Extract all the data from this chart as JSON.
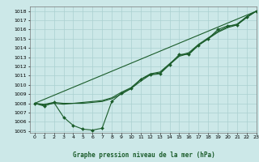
{
  "title": "Graphe pression niveau de la mer (hPa)",
  "bg_color": "#cce8e8",
  "grid_color": "#aad0d0",
  "line_color": "#1a5c2a",
  "xlim": [
    -0.5,
    23
  ],
  "ylim": [
    1004.8,
    1018.5
  ],
  "xticks": [
    0,
    1,
    2,
    3,
    4,
    5,
    6,
    7,
    8,
    9,
    10,
    11,
    12,
    13,
    14,
    15,
    16,
    17,
    18,
    19,
    20,
    21,
    22,
    23
  ],
  "yticks": [
    1005,
    1006,
    1007,
    1008,
    1009,
    1010,
    1011,
    1012,
    1013,
    1014,
    1015,
    1016,
    1017,
    1018
  ],
  "series_dip": {
    "x": [
      0,
      1,
      2,
      3,
      4,
      5,
      6,
      7,
      8,
      9,
      10,
      11,
      12,
      13,
      14,
      15,
      16,
      17,
      18,
      19,
      20,
      21,
      22,
      23
    ],
    "y": [
      1008.0,
      1007.7,
      1008.1,
      1006.5,
      1005.6,
      1005.2,
      1005.1,
      1005.3,
      1008.2,
      1009.1,
      1009.6,
      1010.6,
      1011.1,
      1011.2,
      1012.2,
      1013.3,
      1013.3,
      1014.3,
      1015.0,
      1016.0,
      1016.4,
      1016.5,
      1017.4,
      1018.0
    ]
  },
  "series_straight": {
    "x": [
      0,
      23
    ],
    "y": [
      1008.0,
      1018.0
    ]
  },
  "series_mid": {
    "x": [
      0,
      1,
      2,
      3,
      4,
      5,
      6,
      7,
      8,
      9,
      10,
      11,
      12,
      13,
      14,
      15,
      16,
      17,
      18,
      19,
      20,
      21,
      22,
      23
    ],
    "y": [
      1008.0,
      1007.9,
      1008.1,
      1008.0,
      1008.0,
      1008.1,
      1008.2,
      1008.3,
      1008.6,
      1009.2,
      1009.7,
      1010.6,
      1011.2,
      1011.4,
      1012.3,
      1013.2,
      1013.5,
      1014.4,
      1015.1,
      1015.8,
      1016.3,
      1016.6,
      1017.4,
      1018.0
    ]
  },
  "series_smooth": {
    "x": [
      0,
      1,
      2,
      3,
      4,
      5,
      6,
      7,
      8,
      9,
      10,
      11,
      12,
      13,
      14,
      15,
      16,
      17,
      18,
      19,
      20,
      21,
      22,
      23
    ],
    "y": [
      1008.0,
      1007.8,
      1008.0,
      1007.9,
      1008.0,
      1008.0,
      1008.1,
      1008.2,
      1008.5,
      1009.0,
      1009.6,
      1010.4,
      1011.1,
      1011.3,
      1012.2,
      1013.1,
      1013.4,
      1014.3,
      1015.0,
      1015.7,
      1016.2,
      1016.5,
      1017.3,
      1018.0
    ]
  }
}
